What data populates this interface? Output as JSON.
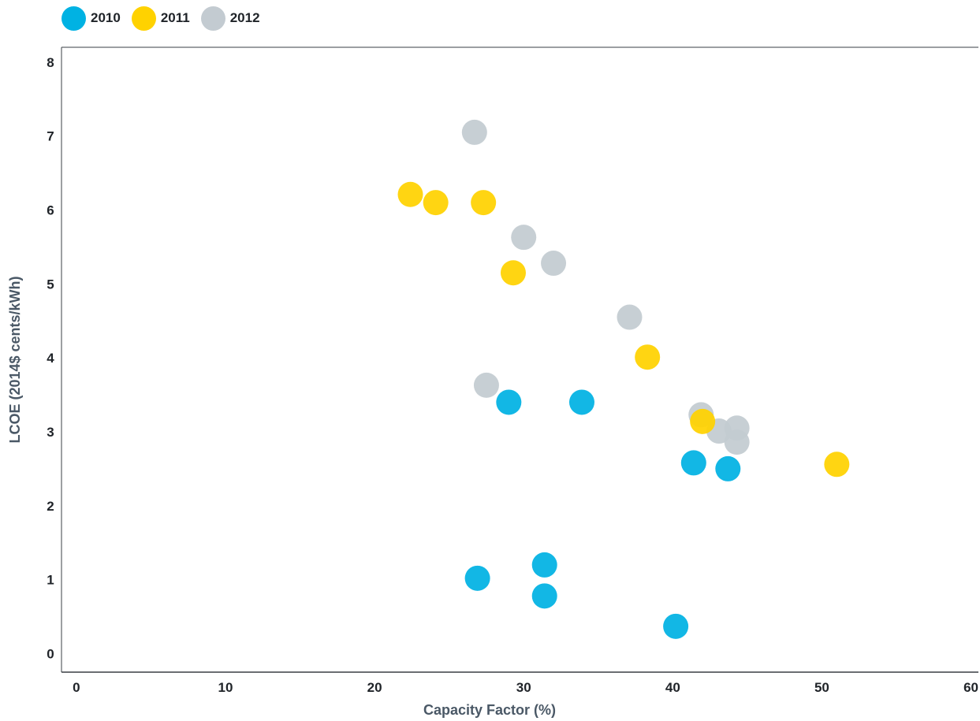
{
  "chart_data": {
    "type": "scatter",
    "xlabel": "Capacity Factor (%)",
    "ylabel": "LCOE (2014$ cents/kWh)",
    "xlim": [
      -1,
      60.5
    ],
    "ylim": [
      -0.25,
      8.2
    ],
    "xticks": [
      "0",
      "10",
      "20",
      "30",
      "40",
      "50",
      "60"
    ],
    "yticks": [
      "0",
      "1",
      "2",
      "3",
      "4",
      "5",
      "6",
      "7",
      "8"
    ],
    "legend_position": "top-left",
    "grid": false,
    "series": [
      {
        "name": "2012",
        "color": "#c3cbd1",
        "points": [
          {
            "x": 26.7,
            "y": 7.05
          },
          {
            "x": 30.0,
            "y": 5.63
          },
          {
            "x": 32.0,
            "y": 5.28
          },
          {
            "x": 37.1,
            "y": 4.55
          },
          {
            "x": 27.5,
            "y": 3.63
          },
          {
            "x": 41.9,
            "y": 3.23
          },
          {
            "x": 43.1,
            "y": 3.01
          },
          {
            "x": 44.3,
            "y": 3.05
          },
          {
            "x": 44.3,
            "y": 2.86
          }
        ]
      },
      {
        "name": "2011",
        "color": "#ffd200",
        "points": [
          {
            "x": 22.4,
            "y": 6.21
          },
          {
            "x": 24.1,
            "y": 6.1
          },
          {
            "x": 27.3,
            "y": 6.1
          },
          {
            "x": 29.3,
            "y": 5.15
          },
          {
            "x": 38.3,
            "y": 4.01
          },
          {
            "x": 42.0,
            "y": 3.14
          },
          {
            "x": 51.0,
            "y": 2.56
          }
        ]
      },
      {
        "name": "2010",
        "color": "#00b2e3",
        "points": [
          {
            "x": 29.0,
            "y": 3.4
          },
          {
            "x": 33.9,
            "y": 3.4
          },
          {
            "x": 41.4,
            "y": 2.58
          },
          {
            "x": 43.7,
            "y": 2.5
          },
          {
            "x": 26.9,
            "y": 1.02
          },
          {
            "x": 31.4,
            "y": 1.2
          },
          {
            "x": 31.4,
            "y": 0.78
          },
          {
            "x": 40.2,
            "y": 0.37
          }
        ]
      }
    ],
    "legend": [
      {
        "label": "2010",
        "color": "#00b2e3"
      },
      {
        "label": "2011",
        "color": "#ffd200"
      },
      {
        "label": "2012",
        "color": "#c3cbd1"
      }
    ]
  }
}
